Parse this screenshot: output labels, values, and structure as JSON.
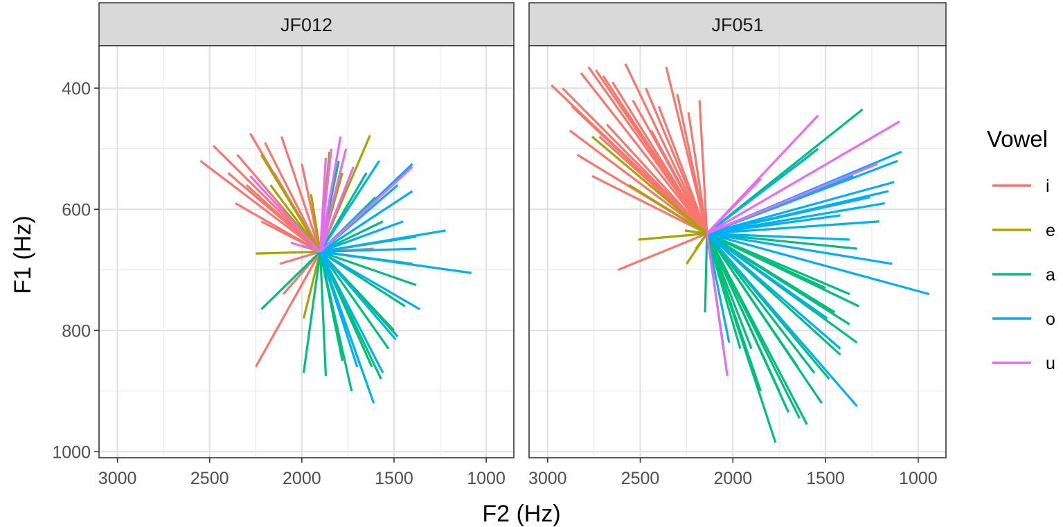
{
  "chart_data": {
    "type": "line",
    "mark": "segments-from-centroid",
    "xlabel": "F2 (Hz)",
    "ylabel": "F1 (Hz)",
    "x_reversed": true,
    "y_reversed": true,
    "xlim": [
      3100,
      850
    ],
    "ylim": [
      330,
      1010
    ],
    "x_ticks": [
      3000,
      2500,
      2000,
      1500,
      1000
    ],
    "x_tick_labels": [
      "3000",
      "2500",
      "2000",
      "1500",
      "1000"
    ],
    "y_ticks": [
      400,
      600,
      800,
      1000
    ],
    "y_tick_labels": [
      "400",
      "600",
      "800",
      "1000"
    ],
    "grid": true,
    "legend": {
      "title": "Vowel",
      "position": "right",
      "entries": [
        {
          "label": "i",
          "color": "#F8766D"
        },
        {
          "label": "e",
          "color": "#A3A500"
        },
        {
          "label": "a",
          "color": "#00BF7D"
        },
        {
          "label": "o",
          "color": "#00B0F6"
        },
        {
          "label": "u",
          "color": "#E76BF3"
        }
      ]
    },
    "panels": [
      {
        "strip_label": "JF012",
        "center": [
          1900,
          670
        ],
        "segments": [
          {
            "vowel": "i",
            "x": 2550,
            "y": 520
          },
          {
            "vowel": "i",
            "x": 2480,
            "y": 495
          },
          {
            "vowel": "i",
            "x": 2400,
            "y": 540
          },
          {
            "vowel": "i",
            "x": 2360,
            "y": 590
          },
          {
            "vowel": "i",
            "x": 2300,
            "y": 560
          },
          {
            "vowel": "i",
            "x": 2280,
            "y": 475
          },
          {
            "vowel": "i",
            "x": 2220,
            "y": 620
          },
          {
            "vowel": "i",
            "x": 2200,
            "y": 490
          },
          {
            "vowel": "i",
            "x": 2150,
            "y": 540
          },
          {
            "vowel": "i",
            "x": 2110,
            "y": 480
          },
          {
            "vowel": "i",
            "x": 2060,
            "y": 590
          },
          {
            "vowel": "i",
            "x": 2000,
            "y": 525
          },
          {
            "vowel": "i",
            "x": 2250,
            "y": 860
          },
          {
            "vowel": "i",
            "x": 2100,
            "y": 740
          },
          {
            "vowel": "i",
            "x": 2120,
            "y": 690
          },
          {
            "vowel": "i",
            "x": 1610,
            "y": 665
          },
          {
            "vowel": "i",
            "x": 2350,
            "y": 510
          },
          {
            "vowel": "e",
            "x": 2220,
            "y": 510
          },
          {
            "vowel": "e",
            "x": 2170,
            "y": 560
          },
          {
            "vowel": "e",
            "x": 2100,
            "y": 600
          },
          {
            "vowel": "e",
            "x": 2250,
            "y": 673
          },
          {
            "vowel": "e",
            "x": 1990,
            "y": 780
          },
          {
            "vowel": "e",
            "x": 1850,
            "y": 505
          },
          {
            "vowel": "e",
            "x": 1780,
            "y": 540
          },
          {
            "vowel": "e",
            "x": 1630,
            "y": 478
          },
          {
            "vowel": "e",
            "x": 1950,
            "y": 575
          },
          {
            "vowel": "a",
            "x": 2220,
            "y": 765
          },
          {
            "vowel": "a",
            "x": 1990,
            "y": 870
          },
          {
            "vowel": "a",
            "x": 1870,
            "y": 875
          },
          {
            "vowel": "a",
            "x": 1730,
            "y": 900
          },
          {
            "vowel": "a",
            "x": 1680,
            "y": 860
          },
          {
            "vowel": "a",
            "x": 1620,
            "y": 860
          },
          {
            "vowel": "a",
            "x": 1570,
            "y": 880
          },
          {
            "vowel": "a",
            "x": 1530,
            "y": 830
          },
          {
            "vowel": "a",
            "x": 1500,
            "y": 800
          },
          {
            "vowel": "a",
            "x": 1440,
            "y": 760
          },
          {
            "vowel": "a",
            "x": 1380,
            "y": 725
          },
          {
            "vowel": "a",
            "x": 1400,
            "y": 690
          },
          {
            "vowel": "a",
            "x": 1380,
            "y": 645
          },
          {
            "vowel": "a",
            "x": 1560,
            "y": 620
          },
          {
            "vowel": "a",
            "x": 1600,
            "y": 580
          },
          {
            "vowel": "a",
            "x": 1800,
            "y": 520
          },
          {
            "vowel": "a",
            "x": 1650,
            "y": 540
          },
          {
            "vowel": "a",
            "x": 1780,
            "y": 850
          },
          {
            "vowel": "a",
            "x": 1480,
            "y": 810
          },
          {
            "vowel": "o",
            "x": 1220,
            "y": 635
          },
          {
            "vowel": "o",
            "x": 1080,
            "y": 705
          },
          {
            "vowel": "o",
            "x": 1380,
            "y": 665
          },
          {
            "vowel": "o",
            "x": 1360,
            "y": 765
          },
          {
            "vowel": "o",
            "x": 1490,
            "y": 815
          },
          {
            "vowel": "o",
            "x": 1610,
            "y": 920
          },
          {
            "vowel": "o",
            "x": 1560,
            "y": 870
          },
          {
            "vowel": "o",
            "x": 1700,
            "y": 860
          },
          {
            "vowel": "o",
            "x": 1400,
            "y": 525
          },
          {
            "vowel": "o",
            "x": 1480,
            "y": 560
          },
          {
            "vowel": "o",
            "x": 1580,
            "y": 520
          },
          {
            "vowel": "o",
            "x": 1400,
            "y": 570
          },
          {
            "vowel": "o",
            "x": 1450,
            "y": 620
          },
          {
            "vowel": "o",
            "x": 2000,
            "y": 660
          },
          {
            "vowel": "u",
            "x": 1790,
            "y": 480
          },
          {
            "vowel": "u",
            "x": 1840,
            "y": 500
          },
          {
            "vowel": "u",
            "x": 1760,
            "y": 500
          },
          {
            "vowel": "u",
            "x": 1870,
            "y": 515
          },
          {
            "vowel": "u",
            "x": 1720,
            "y": 530
          },
          {
            "vowel": "u",
            "x": 2280,
            "y": 545
          },
          {
            "vowel": "u",
            "x": 2060,
            "y": 655
          },
          {
            "vowel": "u",
            "x": 1400,
            "y": 530
          }
        ]
      },
      {
        "strip_label": "JF051",
        "center": [
          2140,
          640
        ],
        "segments": [
          {
            "vowel": "i",
            "x": 2980,
            "y": 395
          },
          {
            "vowel": "i",
            "x": 2920,
            "y": 400
          },
          {
            "vowel": "i",
            "x": 2870,
            "y": 430
          },
          {
            "vowel": "i",
            "x": 2820,
            "y": 375
          },
          {
            "vowel": "i",
            "x": 2780,
            "y": 365
          },
          {
            "vowel": "i",
            "x": 2740,
            "y": 370
          },
          {
            "vowel": "i",
            "x": 2700,
            "y": 380
          },
          {
            "vowel": "i",
            "x": 2650,
            "y": 390
          },
          {
            "vowel": "i",
            "x": 2580,
            "y": 360
          },
          {
            "vowel": "i",
            "x": 2540,
            "y": 420
          },
          {
            "vowel": "i",
            "x": 2470,
            "y": 400
          },
          {
            "vowel": "i",
            "x": 2400,
            "y": 430
          },
          {
            "vowel": "i",
            "x": 2360,
            "y": 365
          },
          {
            "vowel": "i",
            "x": 2300,
            "y": 410
          },
          {
            "vowel": "i",
            "x": 2240,
            "y": 440
          },
          {
            "vowel": "i",
            "x": 2180,
            "y": 420
          },
          {
            "vowel": "i",
            "x": 2840,
            "y": 510
          },
          {
            "vowel": "i",
            "x": 2760,
            "y": 545
          },
          {
            "vowel": "i",
            "x": 2720,
            "y": 480
          },
          {
            "vowel": "i",
            "x": 2620,
            "y": 700
          },
          {
            "vowel": "i",
            "x": 2880,
            "y": 470
          },
          {
            "vowel": "i",
            "x": 2680,
            "y": 460
          },
          {
            "vowel": "i",
            "x": 2440,
            "y": 470
          },
          {
            "vowel": "e",
            "x": 2760,
            "y": 480
          },
          {
            "vowel": "e",
            "x": 2560,
            "y": 560
          },
          {
            "vowel": "e",
            "x": 2510,
            "y": 650
          },
          {
            "vowel": "e",
            "x": 2250,
            "y": 690
          },
          {
            "vowel": "e",
            "x": 2070,
            "y": 715
          },
          {
            "vowel": "e",
            "x": 2260,
            "y": 635
          },
          {
            "vowel": "e",
            "x": 2200,
            "y": 665
          },
          {
            "vowel": "a",
            "x": 1300,
            "y": 435
          },
          {
            "vowel": "a",
            "x": 1330,
            "y": 665
          },
          {
            "vowel": "a",
            "x": 1320,
            "y": 760
          },
          {
            "vowel": "a",
            "x": 1370,
            "y": 740
          },
          {
            "vowel": "a",
            "x": 1330,
            "y": 820
          },
          {
            "vowel": "a",
            "x": 1370,
            "y": 790
          },
          {
            "vowel": "a",
            "x": 1480,
            "y": 880
          },
          {
            "vowel": "a",
            "x": 1560,
            "y": 870
          },
          {
            "vowel": "a",
            "x": 1600,
            "y": 955
          },
          {
            "vowel": "a",
            "x": 1640,
            "y": 945
          },
          {
            "vowel": "a",
            "x": 1700,
            "y": 935
          },
          {
            "vowel": "a",
            "x": 1770,
            "y": 985
          },
          {
            "vowel": "a",
            "x": 1850,
            "y": 900
          },
          {
            "vowel": "a",
            "x": 1900,
            "y": 830
          },
          {
            "vowel": "a",
            "x": 1960,
            "y": 830
          },
          {
            "vowel": "a",
            "x": 2050,
            "y": 830
          },
          {
            "vowel": "a",
            "x": 2150,
            "y": 770
          },
          {
            "vowel": "a",
            "x": 1500,
            "y": 730
          },
          {
            "vowel": "a",
            "x": 1450,
            "y": 770
          },
          {
            "vowel": "a",
            "x": 1520,
            "y": 920
          },
          {
            "vowel": "a",
            "x": 1420,
            "y": 840
          },
          {
            "vowel": "a",
            "x": 1750,
            "y": 900
          },
          {
            "vowel": "a",
            "x": 1650,
            "y": 860
          },
          {
            "vowel": "a",
            "x": 1540,
            "y": 500
          },
          {
            "vowel": "o",
            "x": 940,
            "y": 740
          },
          {
            "vowel": "o",
            "x": 1090,
            "y": 505
          },
          {
            "vowel": "o",
            "x": 1110,
            "y": 520
          },
          {
            "vowel": "o",
            "x": 1130,
            "y": 555
          },
          {
            "vowel": "o",
            "x": 1160,
            "y": 570
          },
          {
            "vowel": "o",
            "x": 1180,
            "y": 590
          },
          {
            "vowel": "o",
            "x": 1210,
            "y": 620
          },
          {
            "vowel": "o",
            "x": 1140,
            "y": 690
          },
          {
            "vowel": "o",
            "x": 1330,
            "y": 925
          },
          {
            "vowel": "o",
            "x": 1420,
            "y": 830
          },
          {
            "vowel": "o",
            "x": 1490,
            "y": 780
          },
          {
            "vowel": "o",
            "x": 1350,
            "y": 545
          },
          {
            "vowel": "o",
            "x": 1420,
            "y": 610
          },
          {
            "vowel": "o",
            "x": 1370,
            "y": 650
          },
          {
            "vowel": "o",
            "x": 1580,
            "y": 510
          },
          {
            "vowel": "o",
            "x": 1260,
            "y": 580
          },
          {
            "vowel": "o",
            "x": 2020,
            "y": 820
          },
          {
            "vowel": "u",
            "x": 1100,
            "y": 455
          },
          {
            "vowel": "u",
            "x": 1540,
            "y": 445
          },
          {
            "vowel": "u",
            "x": 1220,
            "y": 525
          },
          {
            "vowel": "u",
            "x": 2030,
            "y": 875
          },
          {
            "vowel": "u",
            "x": 1850,
            "y": 550
          }
        ]
      }
    ]
  }
}
